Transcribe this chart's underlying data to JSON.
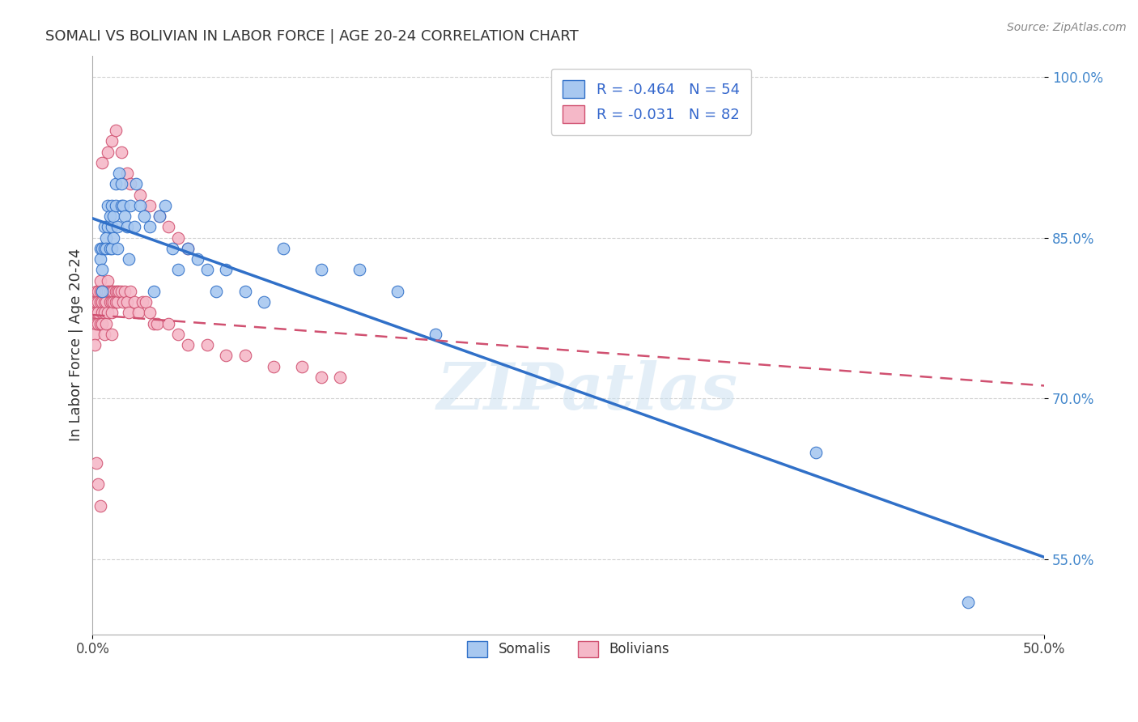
{
  "title": "SOMALI VS BOLIVIAN IN LABOR FORCE | AGE 20-24 CORRELATION CHART",
  "source": "Source: ZipAtlas.com",
  "ylabel": "In Labor Force | Age 20-24",
  "xlim": [
    0.0,
    0.5
  ],
  "ylim": [
    0.48,
    1.02
  ],
  "xticks": [
    0.0,
    0.5
  ],
  "xticklabels": [
    "0.0%",
    "50.0%"
  ],
  "yticks": [
    0.55,
    0.7,
    0.85,
    1.0
  ],
  "yticklabels": [
    "55.0%",
    "70.0%",
    "85.0%",
    "100.0%"
  ],
  "somali_R": -0.464,
  "somali_N": 54,
  "bolivian_R": -0.031,
  "bolivian_N": 82,
  "somali_color": "#a8c8f0",
  "bolivian_color": "#f5b8c8",
  "somali_line_color": "#3070c8",
  "bolivian_line_color": "#d05070",
  "background_color": "#ffffff",
  "grid_color": "#cccccc",
  "watermark": "ZIPatlas",
  "somali_line_x0": 0.0,
  "somali_line_y0": 0.868,
  "somali_line_x1": 0.5,
  "somali_line_y1": 0.552,
  "bolivian_line_x0": 0.0,
  "bolivian_line_y0": 0.778,
  "bolivian_line_x1": 0.5,
  "bolivian_line_y1": 0.712,
  "somali_x": [
    0.004,
    0.004,
    0.005,
    0.005,
    0.005,
    0.006,
    0.006,
    0.007,
    0.007,
    0.008,
    0.008,
    0.009,
    0.009,
    0.01,
    0.01,
    0.01,
    0.011,
    0.011,
    0.012,
    0.012,
    0.013,
    0.013,
    0.014,
    0.015,
    0.015,
    0.016,
    0.017,
    0.018,
    0.019,
    0.02,
    0.022,
    0.023,
    0.025,
    0.027,
    0.03,
    0.032,
    0.035,
    0.038,
    0.042,
    0.045,
    0.05,
    0.055,
    0.06,
    0.065,
    0.07,
    0.08,
    0.09,
    0.1,
    0.12,
    0.14,
    0.16,
    0.18,
    0.38,
    0.46
  ],
  "somali_y": [
    0.84,
    0.83,
    0.82,
    0.8,
    0.84,
    0.86,
    0.84,
    0.85,
    0.84,
    0.86,
    0.88,
    0.87,
    0.84,
    0.88,
    0.86,
    0.84,
    0.87,
    0.85,
    0.9,
    0.88,
    0.86,
    0.84,
    0.91,
    0.9,
    0.88,
    0.88,
    0.87,
    0.86,
    0.83,
    0.88,
    0.86,
    0.9,
    0.88,
    0.87,
    0.86,
    0.8,
    0.87,
    0.88,
    0.84,
    0.82,
    0.84,
    0.83,
    0.82,
    0.8,
    0.82,
    0.8,
    0.79,
    0.84,
    0.82,
    0.82,
    0.8,
    0.76,
    0.65,
    0.51
  ],
  "bolivian_x": [
    0.001,
    0.001,
    0.001,
    0.001,
    0.002,
    0.002,
    0.002,
    0.002,
    0.003,
    0.003,
    0.003,
    0.003,
    0.004,
    0.004,
    0.004,
    0.004,
    0.005,
    0.005,
    0.005,
    0.005,
    0.006,
    0.006,
    0.006,
    0.006,
    0.007,
    0.007,
    0.007,
    0.008,
    0.008,
    0.008,
    0.009,
    0.009,
    0.01,
    0.01,
    0.01,
    0.01,
    0.011,
    0.011,
    0.012,
    0.012,
    0.013,
    0.013,
    0.014,
    0.015,
    0.016,
    0.017,
    0.018,
    0.019,
    0.02,
    0.022,
    0.024,
    0.026,
    0.028,
    0.03,
    0.032,
    0.034,
    0.04,
    0.045,
    0.05,
    0.06,
    0.07,
    0.08,
    0.095,
    0.11,
    0.12,
    0.13,
    0.005,
    0.008,
    0.01,
    0.012,
    0.015,
    0.018,
    0.02,
    0.025,
    0.03,
    0.035,
    0.04,
    0.045,
    0.05,
    0.002,
    0.003,
    0.004
  ],
  "bolivian_y": [
    0.79,
    0.78,
    0.76,
    0.75,
    0.8,
    0.79,
    0.78,
    0.77,
    0.8,
    0.79,
    0.78,
    0.77,
    0.81,
    0.8,
    0.79,
    0.77,
    0.8,
    0.79,
    0.78,
    0.77,
    0.8,
    0.79,
    0.78,
    0.76,
    0.8,
    0.79,
    0.77,
    0.81,
    0.8,
    0.78,
    0.8,
    0.79,
    0.8,
    0.79,
    0.78,
    0.76,
    0.8,
    0.79,
    0.8,
    0.79,
    0.8,
    0.79,
    0.8,
    0.8,
    0.79,
    0.8,
    0.79,
    0.78,
    0.8,
    0.79,
    0.78,
    0.79,
    0.79,
    0.78,
    0.77,
    0.77,
    0.77,
    0.76,
    0.75,
    0.75,
    0.74,
    0.74,
    0.73,
    0.73,
    0.72,
    0.72,
    0.92,
    0.93,
    0.94,
    0.95,
    0.93,
    0.91,
    0.9,
    0.89,
    0.88,
    0.87,
    0.86,
    0.85,
    0.84,
    0.64,
    0.62,
    0.6
  ]
}
